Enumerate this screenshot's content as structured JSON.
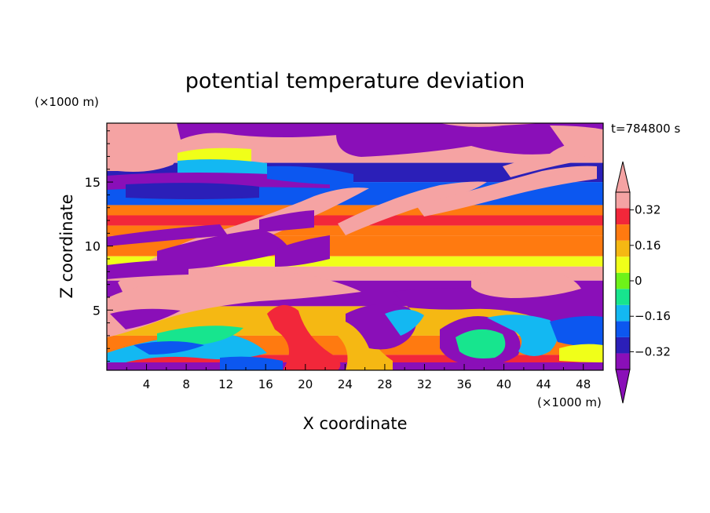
{
  "chart_data": {
    "type": "heatmap",
    "title": "potential temperature deviation",
    "xlabel": "X coordinate",
    "ylabel": "Z coordinate",
    "x_unit": "(×1000 m)",
    "y_unit": "(×1000 m)",
    "time_label": "t=784800 s",
    "xlim": [
      0,
      50
    ],
    "ylim": [
      0.3,
      19.6
    ],
    "x_ticks": [
      4,
      8,
      12,
      16,
      20,
      24,
      28,
      32,
      36,
      40,
      44,
      48
    ],
    "y_ticks": [
      5,
      10,
      15
    ],
    "colorbar": {
      "levels": [
        -0.4,
        -0.32,
        -0.24,
        -0.16,
        -0.08,
        0,
        0.08,
        0.16,
        0.24,
        0.32,
        0.4
      ],
      "tick_values": [
        -0.32,
        -0.16,
        0,
        0.16,
        0.32
      ],
      "tick_labels": [
        "−0.32",
        "−0.16",
        "0",
        "0.16",
        "0.32"
      ],
      "colors": [
        "#8a0fb8",
        "#2b1fb8",
        "#0c57f0",
        "#13b8f2",
        "#17e58e",
        "#6ef219",
        "#f0ff19",
        "#f5b813",
        "#ff7a10",
        "#f2273a",
        "#f5a3a3"
      ],
      "under_color": "#8a0fb8",
      "over_color": "#f5a3a3",
      "extend": "both"
    },
    "bands": [
      {
        "z_range": [
          16.5,
          19.6
        ],
        "value": 0.45
      },
      {
        "z_range": [
          15.0,
          16.5
        ],
        "value": -0.35
      },
      {
        "z_range": [
          13.2,
          15.0
        ],
        "value": -0.3
      },
      {
        "z_range": [
          12.4,
          13.2
        ],
        "value": 0.18
      },
      {
        "z_range": [
          11.6,
          12.4
        ],
        "value": 0.3
      },
      {
        "z_range": [
          10.8,
          11.6
        ],
        "value": 0.2
      },
      {
        "z_range": [
          9.2,
          10.8
        ],
        "value": 0.16
      },
      {
        "z_range": [
          8.4,
          9.2
        ],
        "value": 0.05
      },
      {
        "z_range": [
          7.3,
          8.4
        ],
        "value": 0.45
      },
      {
        "z_range": [
          5.3,
          7.3
        ],
        "value": -0.45
      },
      {
        "z_range": [
          3.0,
          5.3
        ],
        "value": 0.1
      },
      {
        "z_range": [
          1.5,
          3.0
        ],
        "value": 0.2
      },
      {
        "z_range": [
          0.3,
          1.5
        ],
        "value": 0.28
      }
    ]
  }
}
